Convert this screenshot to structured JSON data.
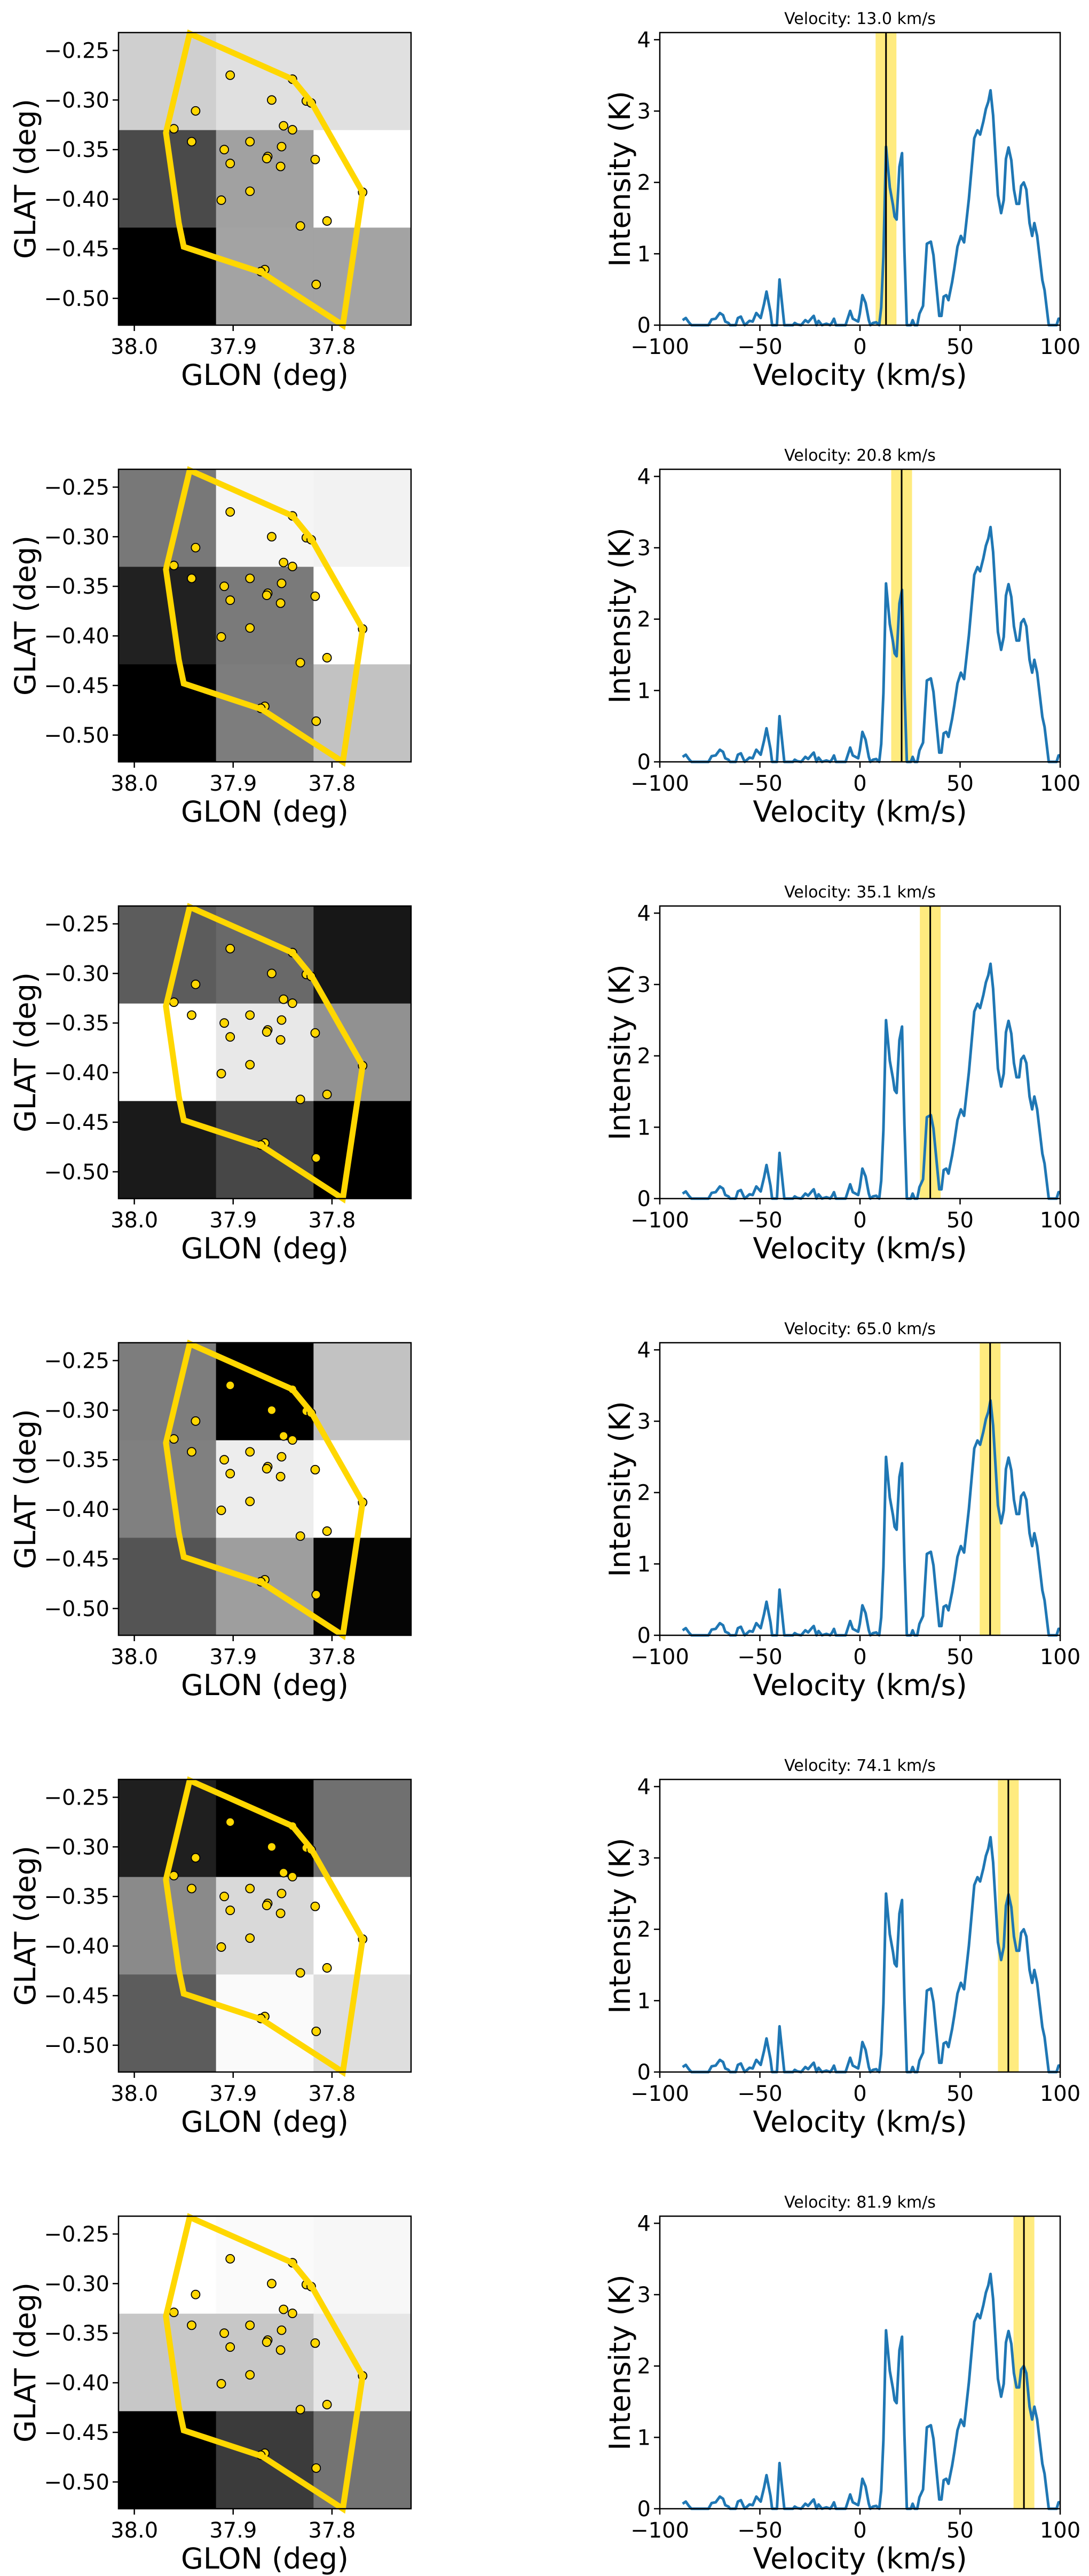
{
  "chart_data": {
    "type": "composite",
    "description_rows": 6,
    "map": {
      "type": "heatmap",
      "xlabel": "GLON (deg)",
      "ylabel": "GLAT (deg)",
      "xlim": [
        38.016,
        37.72
      ],
      "ylim": [
        -0.527,
        -0.232
      ],
      "x_ticks": [
        38.0,
        37.9,
        37.8
      ],
      "x_tick_labels": [
        "38.0",
        "37.9",
        "37.8"
      ],
      "y_ticks": [
        -0.25,
        -0.3,
        -0.35,
        -0.4,
        -0.45,
        -0.5
      ],
      "y_tick_labels": [
        "−0.25",
        "−0.30",
        "−0.35",
        "−0.40",
        "−0.45",
        "−0.50"
      ],
      "colormap": "gray",
      "polygon_color": "#ffd700",
      "point_color": "#ffd700",
      "polygon": [
        [
          37.944,
          -0.233
        ],
        [
          37.84,
          -0.279
        ],
        [
          37.821,
          -0.302
        ],
        [
          37.769,
          -0.393
        ],
        [
          37.789,
          -0.527
        ],
        [
          37.871,
          -0.474
        ],
        [
          37.95,
          -0.448
        ],
        [
          37.955,
          -0.424
        ],
        [
          37.968,
          -0.333
        ]
      ],
      "sources": [
        [
          37.903,
          -0.275
        ],
        [
          37.861,
          -0.3
        ],
        [
          37.938,
          -0.311
        ],
        [
          37.826,
          -0.301
        ],
        [
          37.821,
          -0.303
        ],
        [
          37.84,
          -0.279
        ],
        [
          37.96,
          -0.329
        ],
        [
          37.849,
          -0.326
        ],
        [
          37.84,
          -0.33
        ],
        [
          37.942,
          -0.342
        ],
        [
          37.883,
          -0.342
        ],
        [
          37.909,
          -0.35
        ],
        [
          37.851,
          -0.347
        ],
        [
          37.865,
          -0.357
        ],
        [
          37.866,
          -0.359
        ],
        [
          37.903,
          -0.364
        ],
        [
          37.817,
          -0.36
        ],
        [
          37.852,
          -0.367
        ],
        [
          37.769,
          -0.393
        ],
        [
          37.883,
          -0.392
        ],
        [
          37.912,
          -0.401
        ],
        [
          37.805,
          -0.422
        ],
        [
          37.832,
          -0.427
        ],
        [
          37.868,
          -0.471
        ],
        [
          37.872,
          -0.473
        ],
        [
          37.816,
          -0.486
        ]
      ]
    },
    "spectrum": {
      "type": "line",
      "xlabel": "Velocity (km/s)",
      "ylabel": "Intensity (K)",
      "xlim": [
        -100,
        100
      ],
      "ylim": [
        0,
        4.1
      ],
      "x_ticks": [
        -100,
        -50,
        0,
        50,
        100
      ],
      "x_tick_labels": [
        "−100",
        "−50",
        "0",
        "50",
        "100"
      ],
      "y_ticks": [
        0,
        1,
        2,
        3,
        4
      ],
      "y_tick_labels": [
        "0",
        "1",
        "2",
        "3",
        "4"
      ],
      "line_color": "#1f77b4",
      "band_color": "#ffd700",
      "band_halfwidth": 5.2,
      "v": [
        -88.6,
        -87.0,
        -85.5,
        -84.2,
        -75.7,
        -74.1,
        -72.1,
        -70.0,
        -68.4,
        -67.3,
        -65.7,
        -64.9,
        -62.1,
        -61.0,
        -59.5,
        -57.6,
        -55.2,
        -53.6,
        -51.8,
        -49.6,
        -47.9,
        -46.7,
        -44.7,
        -43.9,
        -41.5,
        -40.2,
        -37.8,
        -33.5,
        -32.6,
        -31.3,
        -29.4,
        -27.3,
        -25.9,
        -23.8,
        -23.1,
        -21.7,
        -20.7,
        -19.0,
        -16.8,
        -14.9,
        -13.9,
        -13.0,
        -12.0,
        -7.2,
        -4.9,
        -3.6,
        -0.9,
        -0.1,
        1.2,
        2.8,
        4.4,
        5.2,
        6.5,
        8.1,
        9.6,
        10.6,
        11.7,
        13.0,
        14.9,
        16.5,
        17.3,
        18.3,
        19.7,
        21.0,
        22.2,
        23.4,
        25.4,
        26.3,
        27.3,
        28.6,
        29.7,
        31.5,
        33.4,
        35.4,
        36.7,
        39.6,
        40.7,
        41.8,
        43.1,
        44.2,
        46.0,
        47.1,
        48.7,
        50.4,
        52.0,
        54.4,
        57.1,
        58.7,
        60.0,
        61.6,
        62.9,
        64.1,
        65.2,
        66.5,
        68.9,
        70.5,
        71.8,
        72.9,
        74.2,
        75.6,
        76.9,
        78.2,
        79.5,
        80.5,
        81.8,
        83.1,
        84.7,
        86.0,
        87.1,
        88.5,
        91.1,
        92.2,
        94.3,
        98.2,
        99.2,
        99.8
      ],
      "T": [
        0.07,
        0.1,
        0.04,
        0,
        0,
        0.08,
        0.09,
        0.17,
        0.14,
        0.05,
        0.03,
        0,
        0,
        0.1,
        0.12,
        0,
        0.06,
        0.05,
        0.17,
        0.1,
        0.3,
        0.47,
        0.18,
        0,
        0,
        0.64,
        0,
        0,
        0.03,
        0.01,
        0,
        0.07,
        0.04,
        0.11,
        0.13,
        0,
        0.06,
        0,
        0.02,
        0,
        0.04,
        0.09,
        0,
        0,
        0.2,
        0.09,
        0.05,
        0.16,
        0.42,
        0.31,
        0.07,
        0,
        0.03,
        0.04,
        0,
        0.25,
        0.96,
        2.5,
        1.93,
        1.68,
        1.52,
        1.48,
        2.22,
        2.41,
        1.03,
        0,
        0,
        0.07,
        0,
        0,
        0.16,
        0.27,
        1.14,
        1.17,
        0.98,
        0.13,
        0.13,
        0.4,
        0.42,
        0.35,
        0.6,
        0.79,
        1.1,
        1.25,
        1.16,
        1.77,
        2.62,
        2.73,
        2.67,
        2.85,
        3.03,
        3.13,
        3.29,
        2.94,
        1.82,
        1.57,
        1.75,
        2.33,
        2.49,
        2.31,
        1.9,
        1.7,
        1.7,
        1.95,
        2.0,
        1.9,
        1.43,
        1.25,
        1.43,
        1.25,
        0.63,
        0.49,
        0,
        0,
        0.09,
        0.09
      ]
    },
    "rows": [
      {
        "title": "Velocity: 13.0 km/s",
        "velocity": 13.0,
        "grid": [
          [
            0.81,
            0.88,
            0.88
          ],
          [
            0.29,
            0.63,
            1.0
          ],
          [
            0.0,
            0.64,
            0.64
          ]
        ]
      },
      {
        "title": "Velocity: 20.8 km/s",
        "velocity": 20.8,
        "grid": [
          [
            0.47,
            0.96,
            0.95
          ],
          [
            0.13,
            0.48,
            1.0
          ],
          [
            0.0,
            0.49,
            0.76
          ]
        ]
      },
      {
        "title": "Velocity: 35.1 km/s",
        "velocity": 35.1,
        "grid": [
          [
            0.36,
            0.41,
            0.09
          ],
          [
            1.0,
            0.91,
            0.57
          ],
          [
            0.1,
            0.28,
            0.0
          ]
        ]
      },
      {
        "title": "Velocity: 65.0 km/s",
        "velocity": 65.0,
        "grid": [
          [
            0.49,
            0.0,
            0.76
          ],
          [
            0.5,
            0.93,
            1.0
          ],
          [
            0.33,
            0.62,
            0.02
          ]
        ]
      },
      {
        "title": "Velocity: 74.1 km/s",
        "velocity": 74.1,
        "grid": [
          [
            0.12,
            0.0,
            0.44
          ],
          [
            0.54,
            0.85,
            1.0
          ],
          [
            0.36,
            0.98,
            0.87
          ]
        ]
      },
      {
        "title": "Velocity: 81.9 km/s",
        "velocity": 81.9,
        "grid": [
          [
            1.0,
            0.98,
            0.97
          ],
          [
            0.78,
            0.78,
            0.9
          ],
          [
            0.0,
            0.23,
            0.45
          ]
        ]
      }
    ]
  }
}
